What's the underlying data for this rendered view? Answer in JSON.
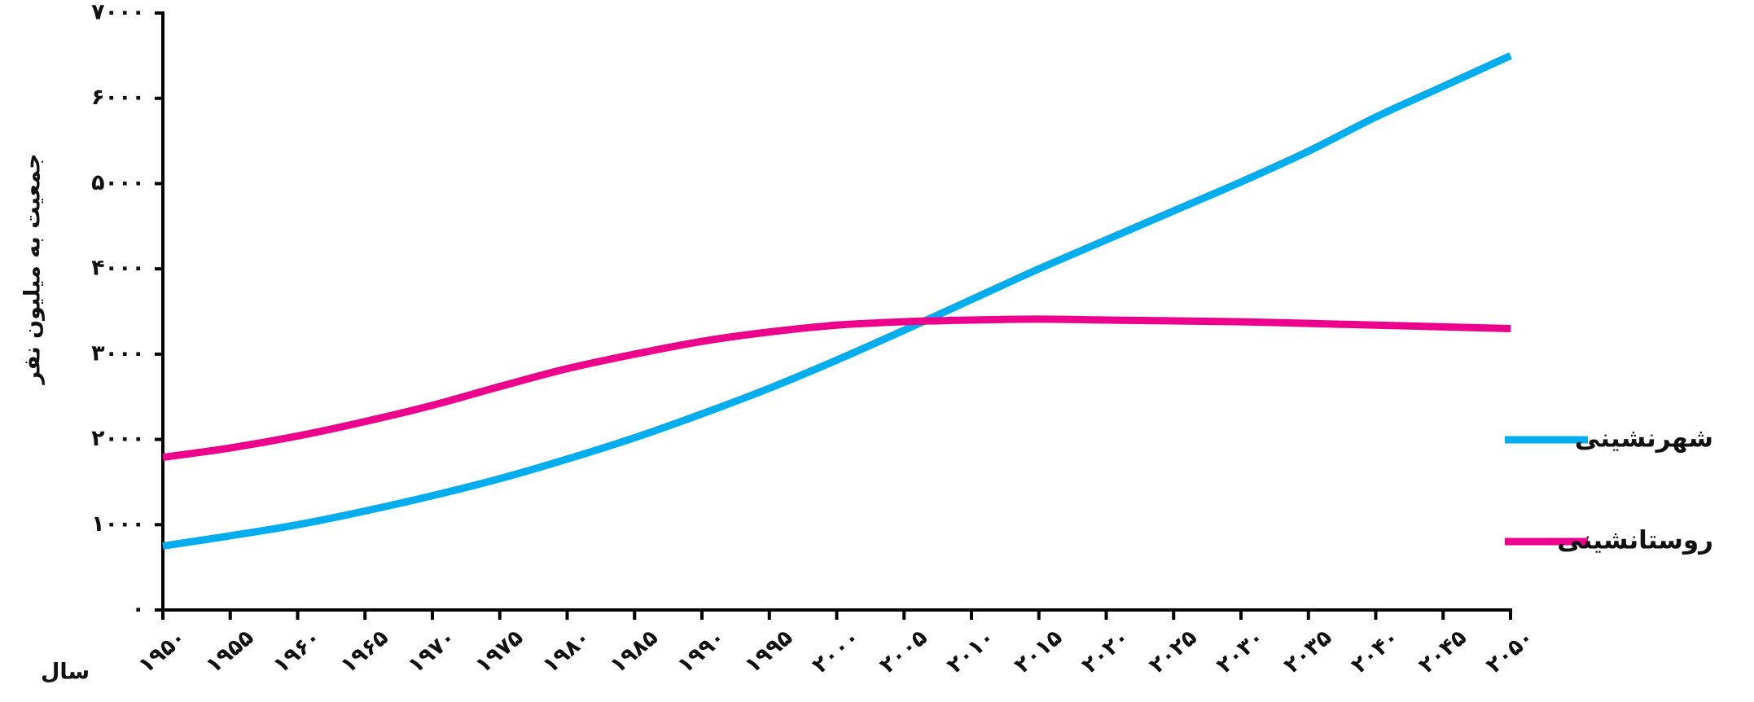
{
  "chart_data": {
    "type": "line",
    "xlabel": "سال",
    "ylabel": "جمعیت به میلیون نفر",
    "x": [
      1950,
      1955,
      1960,
      1965,
      1970,
      1975,
      1980,
      1985,
      1990,
      1995,
      2000,
      2005,
      2010,
      2015,
      2020,
      2025,
      2030,
      2035,
      2040,
      2045,
      2050
    ],
    "series": [
      {
        "name": "شهرنشینی",
        "color": "#00aeef",
        "values": [
          750,
          870,
          1000,
          1160,
          1340,
          1540,
          1770,
          2020,
          2300,
          2600,
          2930,
          3280,
          3640,
          4000,
          4340,
          4680,
          5020,
          5380,
          5780,
          6140,
          6500
        ]
      },
      {
        "name": "روستانشینی",
        "color": "#ec008c",
        "values": [
          1790,
          1900,
          2040,
          2210,
          2400,
          2620,
          2830,
          3000,
          3150,
          3260,
          3340,
          3380,
          3400,
          3410,
          3400,
          3390,
          3380,
          3360,
          3340,
          3320,
          3300
        ]
      }
    ],
    "xlim": [
      1950,
      2050
    ],
    "xticks": [
      {
        "value": 1950,
        "label": "۱۹۵۰"
      },
      {
        "value": 1955,
        "label": "۱۹۵۵"
      },
      {
        "value": 1960,
        "label": "۱۹۶۰"
      },
      {
        "value": 1965,
        "label": "۱۹۶۵"
      },
      {
        "value": 1970,
        "label": "۱۹۷۰"
      },
      {
        "value": 1975,
        "label": "۱۹۷۵"
      },
      {
        "value": 1980,
        "label": "۱۹۸۰"
      },
      {
        "value": 1985,
        "label": "۱۹۸۵"
      },
      {
        "value": 1990,
        "label": "۱۹۹۰"
      },
      {
        "value": 1995,
        "label": "۱۹۹۵"
      },
      {
        "value": 2000,
        "label": "۲۰۰۰"
      },
      {
        "value": 2005,
        "label": "۲۰۰۵"
      },
      {
        "value": 2010,
        "label": "۲۰۱۰"
      },
      {
        "value": 2015,
        "label": "۲۰۱۵"
      },
      {
        "value": 2020,
        "label": "۲۰۲۰"
      },
      {
        "value": 2025,
        "label": "۲۰۲۵"
      },
      {
        "value": 2030,
        "label": "۲۰۳۰"
      },
      {
        "value": 2035,
        "label": "۲۰۳۵"
      },
      {
        "value": 2040,
        "label": "۲۰۴۰"
      },
      {
        "value": 2045,
        "label": "۲۰۴۵"
      },
      {
        "value": 2050,
        "label": "۲۰۵۰"
      }
    ],
    "ylim": [
      0,
      7000
    ],
    "yticks": [
      {
        "value": 0,
        "label": "۰"
      },
      {
        "value": 1000,
        "label": "۱۰۰۰"
      },
      {
        "value": 2000,
        "label": "۲۰۰۰"
      },
      {
        "value": 3000,
        "label": "۳۰۰۰"
      },
      {
        "value": 4000,
        "label": "۴۰۰۰"
      },
      {
        "value": 5000,
        "label": "۵۰۰۰"
      },
      {
        "value": 6000,
        "label": "۶۰۰۰"
      },
      {
        "value": 7000,
        "label": "۷۰۰۰"
      }
    ],
    "grid": false,
    "legend": "right"
  }
}
